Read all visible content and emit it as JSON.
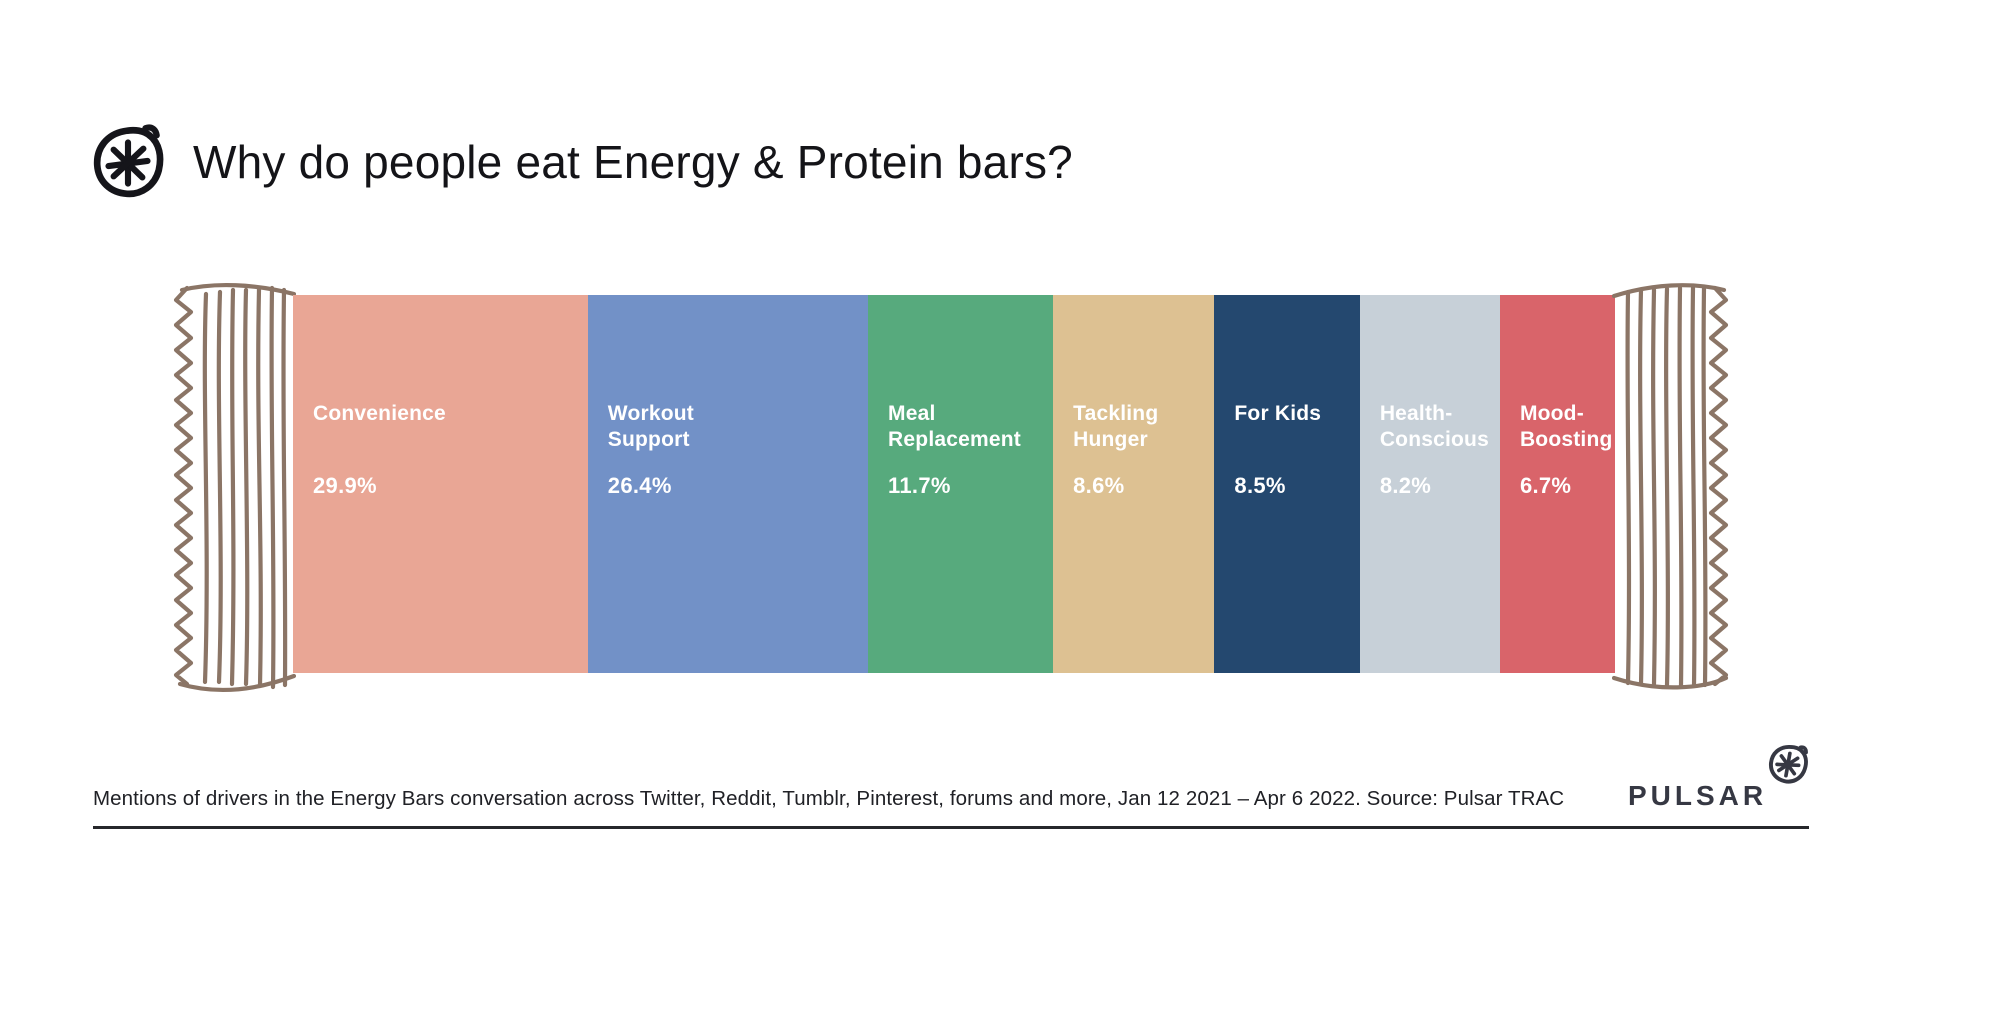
{
  "header": {
    "title": "Why do people eat Energy & Protein bars?"
  },
  "chart_data": {
    "type": "bar",
    "variant": "horizontal-stacked-candy-bar-infographic",
    "title": "Why do people eat Energy & Protein bars?",
    "unit": "percent of mentions",
    "categories": [
      "Convenience",
      "Workout Support",
      "Meal Replacement",
      "Tackling Hunger",
      "For Kids",
      "Health-Conscious",
      "Mood-Boosting"
    ],
    "values": [
      29.9,
      26.4,
      11.7,
      8.6,
      8.5,
      8.2,
      6.7
    ],
    "segments": [
      {
        "label_lines": "Convenience",
        "value_label": "29.9%",
        "color": "#e9a695",
        "display_width_pct": 22.3
      },
      {
        "label_lines": "Workout\nSupport",
        "value_label": "26.4%",
        "color": "#7291c7",
        "display_width_pct": 21.2
      },
      {
        "label_lines": "Meal\nReplacement",
        "value_label": "11.7%",
        "color": "#57aa7d",
        "display_width_pct": 14.0
      },
      {
        "label_lines": "Tackling\nHunger",
        "value_label": "8.6%",
        "color": "#ddc192",
        "display_width_pct": 12.2
      },
      {
        "label_lines": "For Kids",
        "value_label": "8.5%",
        "color": "#24486f",
        "display_width_pct": 11.0
      },
      {
        "label_lines": "Health-\nConscious",
        "value_label": "8.2%",
        "color": "#c7d0d8",
        "display_width_pct": 10.6
      },
      {
        "label_lines": "Mood-\nBoosting",
        "value_label": "6.7%",
        "color": "#d9646a",
        "display_width_pct": 8.7
      }
    ],
    "legend": "none",
    "axes": "none",
    "label_text_color": "#ffffff",
    "wrapper_stroke_color": "#8b7566"
  },
  "footer": {
    "caption": "Mentions of drivers in the Energy Bars conversation across Twitter, Reddit, Tumblr, Pinterest, forums and more, Jan 12 2021 – Apr 6 2022. Source: Pulsar TRAC",
    "brand": "PULSAR"
  }
}
